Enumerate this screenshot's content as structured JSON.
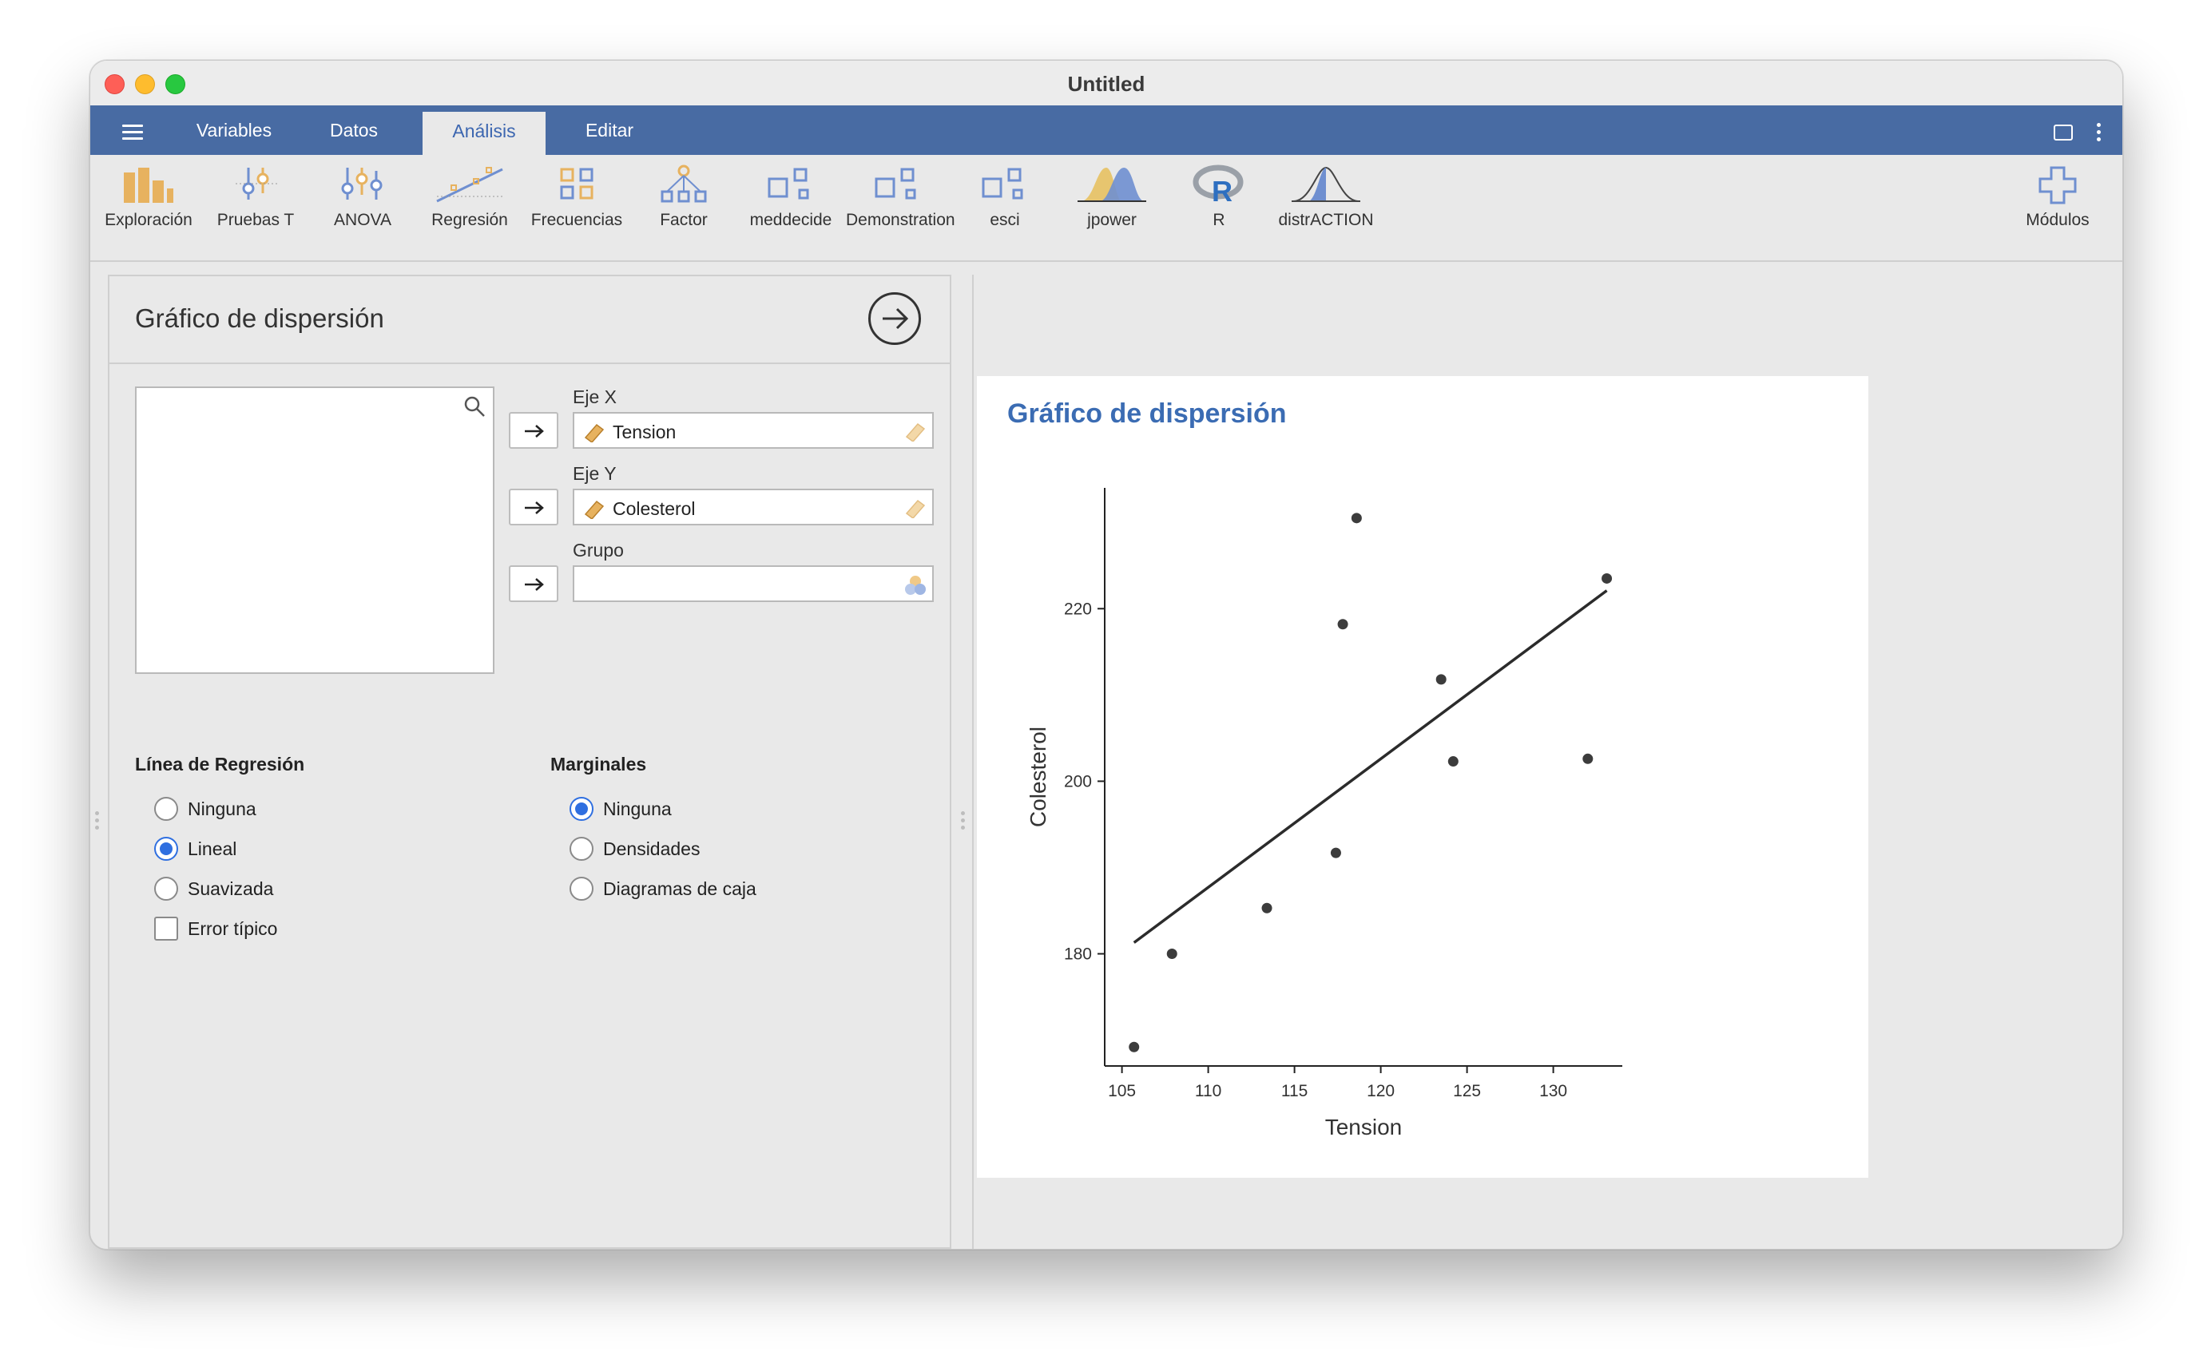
{
  "window": {
    "title": "Untitled"
  },
  "menubar": {
    "tabs": [
      {
        "label": "Variables"
      },
      {
        "label": "Datos"
      },
      {
        "label": "Análisis",
        "active": true
      },
      {
        "label": "Editar"
      }
    ]
  },
  "toolbar": {
    "items": [
      {
        "label": "Exploración",
        "icon": "bar-chart-icon"
      },
      {
        "label": "Pruebas T",
        "icon": "t-test-icon"
      },
      {
        "label": "ANOVA",
        "icon": "anova-icon"
      },
      {
        "label": "Regresión",
        "icon": "regression-icon"
      },
      {
        "label": "Frecuencias",
        "icon": "frequencies-icon"
      },
      {
        "label": "Factor",
        "icon": "factor-icon"
      },
      {
        "label": "meddecide",
        "icon": "meddecide-icon"
      },
      {
        "label": "Demonstration",
        "icon": "demonstration-icon"
      },
      {
        "label": "esci",
        "icon": "esci-icon"
      },
      {
        "label": "jpower",
        "icon": "jpower-icon"
      },
      {
        "label": "R",
        "icon": "r-logo-icon"
      },
      {
        "label": "distrACTION",
        "icon": "distraction-icon"
      }
    ],
    "modules_label": "Módulos"
  },
  "options": {
    "title": "Gráfico de dispersión",
    "eje_x_label": "Eje X",
    "eje_x_value": "Tension",
    "eje_y_label": "Eje Y",
    "eje_y_value": "Colesterol",
    "grupo_label": "Grupo",
    "grupo_value": "",
    "regression": {
      "heading": "Línea de Regresión",
      "options": [
        "Ninguna",
        "Lineal",
        "Suavizada"
      ],
      "selected": "Lineal",
      "error_label": "Error típico",
      "error_checked": false
    },
    "marginals": {
      "heading": "Marginales",
      "options": [
        "Ninguna",
        "Densidades",
        "Diagramas de caja"
      ],
      "selected": "Ninguna"
    }
  },
  "results": {
    "title": "Gráfico de dispersión"
  },
  "colors": {
    "accent": "#486ba3",
    "title_blue": "#3b6cb3",
    "radio_blue": "#2f6fe0"
  },
  "chart_data": {
    "type": "scatter",
    "xlabel": "Tension",
    "ylabel": "Colesterol",
    "xlim": [
      104,
      134
    ],
    "ylim": [
      167,
      234
    ],
    "xticks": [
      105,
      110,
      115,
      120,
      125,
      130
    ],
    "yticks": [
      180,
      200,
      220
    ],
    "points": [
      {
        "x": 105.7,
        "y": 169.2
      },
      {
        "x": 107.9,
        "y": 180.0
      },
      {
        "x": 113.4,
        "y": 185.3
      },
      {
        "x": 117.4,
        "y": 191.7
      },
      {
        "x": 117.8,
        "y": 218.2
      },
      {
        "x": 118.6,
        "y": 230.5
      },
      {
        "x": 123.5,
        "y": 211.8
      },
      {
        "x": 124.2,
        "y": 202.3
      },
      {
        "x": 132.0,
        "y": 202.6
      },
      {
        "x": 133.1,
        "y": 223.5
      }
    ],
    "regression_line": {
      "x": [
        105.7,
        133.1
      ],
      "y": [
        181.3,
        222.1
      ]
    },
    "grid": false
  }
}
